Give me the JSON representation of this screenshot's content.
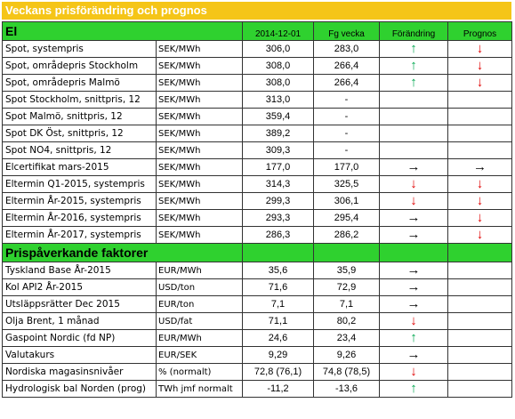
{
  "title": "Veckans prisförändring och prognos",
  "colors": {
    "banner": "#f5c518",
    "section": "#2fd12f",
    "up": "#00a84f",
    "down": "#e00000"
  },
  "arrow_glyphs": {
    "up": "↑",
    "down": "↓",
    "right": "→",
    "none": ""
  },
  "section1": {
    "title": "El",
    "headers": {
      "date": "2014-12-01",
      "prev": "Fg vecka",
      "change": "Förändring",
      "forecast": "Prognos"
    },
    "rows": [
      {
        "name": "Spot, systempris",
        "unit": "SEK/MWh",
        "value": "306,0",
        "prev": "283,0",
        "change": "up",
        "forecast": "down"
      },
      {
        "name": "Spot, områdepris Stockholm",
        "unit": "SEK/MWh",
        "value": "308,0",
        "prev": "266,4",
        "change": "up",
        "forecast": "down"
      },
      {
        "name": "Spot, områdepris Malmö",
        "unit": "SEK/MWh",
        "value": "308,0",
        "prev": "266,4",
        "change": "up",
        "forecast": "down"
      },
      {
        "name": "Spot Stockholm, snittpris,  12",
        "unit": "SEK/MWh",
        "value": "313,0",
        "prev": "-",
        "change": "none",
        "forecast": "none"
      },
      {
        "name": "Spot Malmö, snittpris,  12",
        "unit": "SEK/MWh",
        "value": "359,4",
        "prev": "-",
        "change": "none",
        "forecast": "none"
      },
      {
        "name": "Spot DK Öst, snittpris,  12",
        "unit": "SEK/MWh",
        "value": "389,2",
        "prev": "-",
        "change": "none",
        "forecast": "none"
      },
      {
        "name": "Spot NO4, snittpris,  12",
        "unit": "SEK/MWh",
        "value": "309,3",
        "prev": "-",
        "change": "none",
        "forecast": "none"
      },
      {
        "name": "Elcertifikat mars-2015",
        "unit": "SEK/MWh",
        "value": "177,0",
        "prev": "177,0",
        "change": "right",
        "forecast": "right"
      },
      {
        "name": "Eltermin Q1-2015, systempris",
        "unit": "SEK/MWh",
        "value": "314,3",
        "prev": "325,5",
        "change": "down",
        "forecast": "down"
      },
      {
        "name": "Eltermin År-2015, systempris",
        "unit": "SEK/MWh",
        "value": "299,3",
        "prev": "306,1",
        "change": "down",
        "forecast": "down"
      },
      {
        "name": "Eltermin År-2016, systempris",
        "unit": "SEK/MWh",
        "value": "293,3",
        "prev": "295,4",
        "change": "right",
        "forecast": "down"
      },
      {
        "name": "Eltermin År-2017, systempris",
        "unit": "SEK/MWh",
        "value": "286,3",
        "prev": "286,2",
        "change": "right",
        "forecast": "down"
      }
    ]
  },
  "section2": {
    "title": "Prispåverkande faktorer",
    "rows": [
      {
        "name": "Tyskland Base År-2015",
        "unit": "EUR/MWh",
        "value": "35,6",
        "prev": "35,9",
        "change": "right",
        "forecast": "none"
      },
      {
        "name": "Kol API2 År-2015",
        "unit": "USD/ton",
        "value": "71,6",
        "prev": "72,9",
        "change": "right",
        "forecast": "none"
      },
      {
        "name": "Utsläppsrätter Dec 2015",
        "unit": "EUR/ton",
        "value": "7,1",
        "prev": "7,1",
        "change": "right",
        "forecast": "none"
      },
      {
        "name": "Olja Brent, 1 månad",
        "unit": "USD/fat",
        "value": "71,1",
        "prev": "80,2",
        "change": "down",
        "forecast": "none"
      },
      {
        "name": "Gaspoint Nordic (fd NP)",
        "unit": "EUR/MWh",
        "value": "24,6",
        "prev": "23,4",
        "change": "up",
        "forecast": "none"
      },
      {
        "name": "Valutakurs",
        "unit": "EUR/SEK",
        "value": "9,29",
        "prev": "9,26",
        "change": "right",
        "forecast": "none"
      },
      {
        "name": "Nordiska magasinsnivåer",
        "unit": "%   (normalt)",
        "value": "72,8 (76,1)",
        "prev": "74,8 (78,5)",
        "change": "down",
        "forecast": "none"
      },
      {
        "name": "Hydrologisk bal Norden (prog)",
        "unit": "TWh jmf normalt",
        "value": "-11,2",
        "prev": "-13,6",
        "change": "up",
        "forecast": "none"
      }
    ]
  }
}
